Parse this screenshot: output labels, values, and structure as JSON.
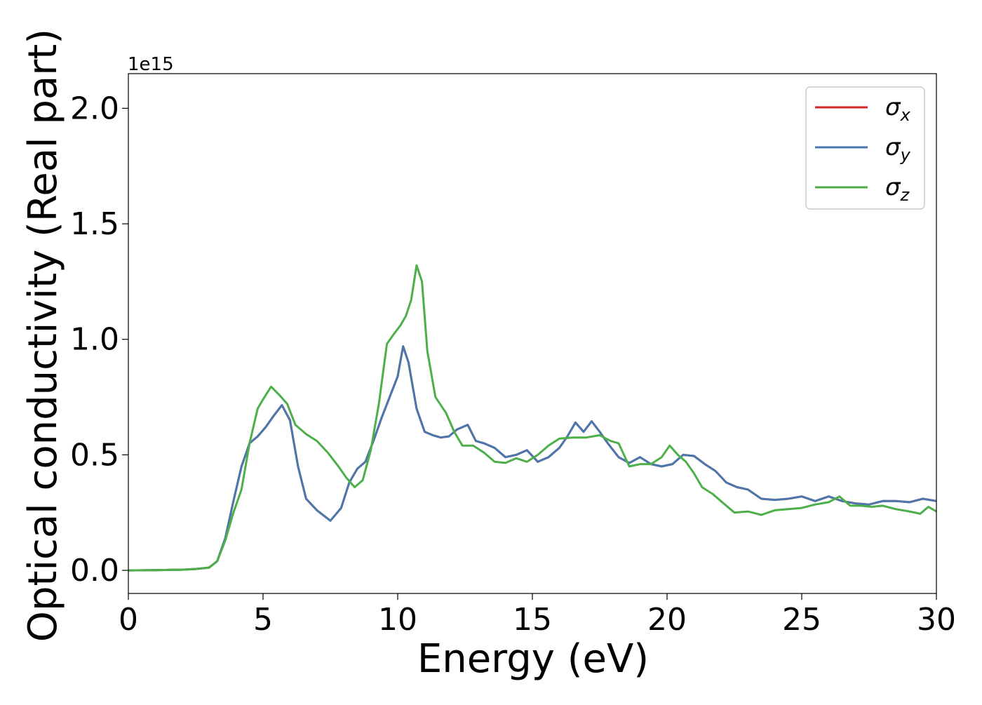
{
  "chart_data": {
    "type": "line",
    "title": "",
    "xlabel": "Energy (eV)",
    "ylabel": "Optical conductivity (Real part)",
    "y_offset_label": "1e15",
    "xlim": [
      0,
      30
    ],
    "ylim": [
      -0.1,
      2.15
    ],
    "x_ticks": [
      0,
      5,
      10,
      15,
      20,
      25,
      30
    ],
    "x_tick_labels": [
      "0",
      "5",
      "10",
      "15",
      "20",
      "25",
      "30"
    ],
    "y_ticks": [
      0.0,
      0.5,
      1.0,
      1.5,
      2.0
    ],
    "y_tick_labels": [
      "0.0",
      "0.5",
      "1.0",
      "1.5",
      "2.0"
    ],
    "grid": false,
    "legend_position": "top-right",
    "legend": [
      {
        "base": "σ",
        "sub": "x",
        "color": "#d62728"
      },
      {
        "base": "σ",
        "sub": "y",
        "color": "#4a78ad"
      },
      {
        "base": "σ",
        "sub": "z",
        "color": "#4daf4a"
      }
    ],
    "series": [
      {
        "name": "σx",
        "color": "#d62728",
        "x": [
          0,
          1,
          2,
          2.5,
          3,
          3.3,
          3.6,
          3.9,
          4.2,
          4.5,
          4.8,
          5.1,
          5.4,
          5.7,
          6.0,
          6.3,
          6.6,
          7.0,
          7.5,
          7.9,
          8.2,
          8.5,
          8.8,
          9.1,
          9.4,
          9.7,
          10.0,
          10.2,
          10.4,
          10.7,
          11.0,
          11.3,
          11.6,
          11.9,
          12.2,
          12.6,
          12.9,
          13.2,
          13.6,
          14.0,
          14.4,
          14.8,
          15.2,
          15.6,
          16.0,
          16.3,
          16.6,
          16.9,
          17.2,
          17.5,
          17.8,
          18.2,
          18.6,
          19.0,
          19.4,
          19.8,
          20.2,
          20.6,
          21.0,
          21.4,
          21.8,
          22.2,
          22.6,
          23.0,
          23.5,
          24.0,
          24.5,
          25.0,
          25.5,
          26.0,
          26.5,
          27.0,
          27.5,
          28.0,
          28.5,
          29.0,
          29.5,
          30.0
        ],
        "y": [
          0,
          0.001,
          0.003,
          0.006,
          0.012,
          0.04,
          0.14,
          0.3,
          0.45,
          0.55,
          0.58,
          0.62,
          0.67,
          0.715,
          0.65,
          0.45,
          0.31,
          0.26,
          0.215,
          0.27,
          0.38,
          0.44,
          0.47,
          0.56,
          0.66,
          0.75,
          0.84,
          0.97,
          0.9,
          0.7,
          0.6,
          0.585,
          0.575,
          0.58,
          0.61,
          0.63,
          0.56,
          0.55,
          0.53,
          0.49,
          0.5,
          0.52,
          0.47,
          0.49,
          0.53,
          0.58,
          0.64,
          0.6,
          0.645,
          0.6,
          0.55,
          0.49,
          0.465,
          0.49,
          0.46,
          0.45,
          0.46,
          0.5,
          0.495,
          0.46,
          0.43,
          0.38,
          0.36,
          0.35,
          0.31,
          0.305,
          0.31,
          0.32,
          0.3,
          0.32,
          0.3,
          0.29,
          0.285,
          0.3,
          0.3,
          0.295,
          0.31,
          0.3
        ]
      },
      {
        "name": "σy",
        "color": "#4a78ad",
        "x": [
          0,
          1,
          2,
          2.5,
          3,
          3.3,
          3.6,
          3.9,
          4.2,
          4.5,
          4.8,
          5.1,
          5.4,
          5.7,
          6.0,
          6.3,
          6.6,
          7.0,
          7.5,
          7.9,
          8.2,
          8.5,
          8.8,
          9.1,
          9.4,
          9.7,
          10.0,
          10.2,
          10.4,
          10.7,
          11.0,
          11.3,
          11.6,
          11.9,
          12.2,
          12.6,
          12.9,
          13.2,
          13.6,
          14.0,
          14.4,
          14.8,
          15.2,
          15.6,
          16.0,
          16.3,
          16.6,
          16.9,
          17.2,
          17.5,
          17.8,
          18.2,
          18.6,
          19.0,
          19.4,
          19.8,
          20.2,
          20.6,
          21.0,
          21.4,
          21.8,
          22.2,
          22.6,
          23.0,
          23.5,
          24.0,
          24.5,
          25.0,
          25.5,
          26.0,
          26.5,
          27.0,
          27.5,
          28.0,
          28.5,
          29.0,
          29.5,
          30.0
        ],
        "y": [
          0,
          0.001,
          0.003,
          0.006,
          0.012,
          0.04,
          0.14,
          0.3,
          0.45,
          0.55,
          0.58,
          0.62,
          0.67,
          0.715,
          0.65,
          0.45,
          0.31,
          0.26,
          0.215,
          0.27,
          0.38,
          0.44,
          0.47,
          0.56,
          0.66,
          0.75,
          0.84,
          0.97,
          0.9,
          0.7,
          0.6,
          0.585,
          0.575,
          0.58,
          0.61,
          0.63,
          0.56,
          0.55,
          0.53,
          0.49,
          0.5,
          0.52,
          0.47,
          0.49,
          0.53,
          0.58,
          0.64,
          0.6,
          0.645,
          0.6,
          0.55,
          0.49,
          0.465,
          0.49,
          0.46,
          0.45,
          0.46,
          0.5,
          0.495,
          0.46,
          0.43,
          0.38,
          0.36,
          0.35,
          0.31,
          0.305,
          0.31,
          0.32,
          0.3,
          0.32,
          0.3,
          0.29,
          0.285,
          0.3,
          0.3,
          0.295,
          0.31,
          0.3
        ]
      },
      {
        "name": "σz",
        "color": "#4daf4a",
        "x": [
          0,
          1,
          2,
          2.5,
          3,
          3.3,
          3.6,
          3.9,
          4.2,
          4.5,
          4.8,
          5.0,
          5.3,
          5.6,
          5.9,
          6.2,
          6.6,
          7.0,
          7.4,
          7.8,
          8.1,
          8.4,
          8.7,
          9.0,
          9.3,
          9.6,
          9.9,
          10.1,
          10.3,
          10.5,
          10.7,
          10.9,
          11.1,
          11.4,
          11.8,
          12.1,
          12.4,
          12.8,
          13.2,
          13.6,
          14.0,
          14.4,
          14.8,
          15.2,
          15.6,
          16.0,
          16.5,
          17.0,
          17.5,
          17.9,
          18.2,
          18.6,
          19.0,
          19.4,
          19.8,
          20.1,
          20.4,
          20.7,
          21.0,
          21.3,
          21.7,
          22.1,
          22.5,
          23.0,
          23.5,
          24.0,
          24.5,
          25.0,
          25.5,
          26.0,
          26.4,
          26.8,
          27.2,
          27.6,
          28.0,
          28.5,
          29.0,
          29.4,
          29.7,
          30.0
        ],
        "y": [
          0,
          0.001,
          0.003,
          0.006,
          0.012,
          0.04,
          0.13,
          0.25,
          0.35,
          0.55,
          0.7,
          0.74,
          0.795,
          0.76,
          0.72,
          0.63,
          0.59,
          0.56,
          0.51,
          0.45,
          0.4,
          0.36,
          0.39,
          0.52,
          0.72,
          0.98,
          1.03,
          1.06,
          1.1,
          1.17,
          1.32,
          1.25,
          0.95,
          0.75,
          0.68,
          0.6,
          0.54,
          0.54,
          0.51,
          0.47,
          0.465,
          0.485,
          0.47,
          0.5,
          0.54,
          0.57,
          0.575,
          0.575,
          0.585,
          0.56,
          0.55,
          0.45,
          0.46,
          0.46,
          0.49,
          0.54,
          0.5,
          0.47,
          0.42,
          0.36,
          0.33,
          0.29,
          0.25,
          0.255,
          0.24,
          0.26,
          0.265,
          0.27,
          0.285,
          0.295,
          0.32,
          0.28,
          0.28,
          0.275,
          0.28,
          0.265,
          0.255,
          0.245,
          0.275,
          0.255
        ]
      }
    ]
  }
}
